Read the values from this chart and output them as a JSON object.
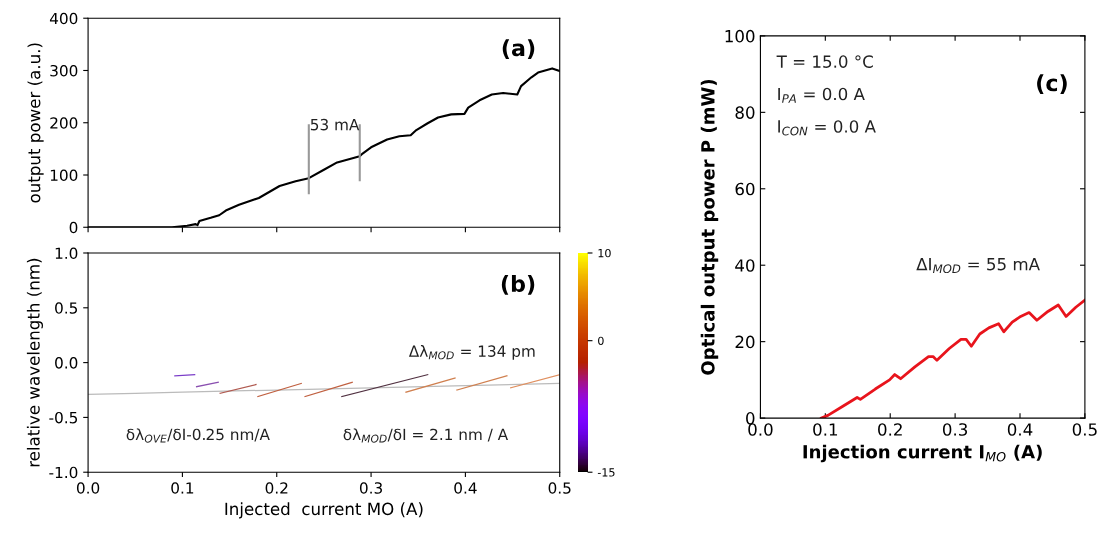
{
  "chart_data": [
    {
      "type": "line",
      "title": "(a)",
      "ylabel": "output power (a.u.)",
      "xlim": [
        0.0,
        0.5
      ],
      "xticks": [
        {
          "value": 0.0,
          "label": null
        },
        {
          "value": 0.1,
          "label": null
        },
        {
          "value": 0.2,
          "label": null
        },
        {
          "value": 0.3,
          "label": null
        },
        {
          "value": 0.4,
          "label": null
        },
        {
          "value": 0.5,
          "label": null
        }
      ],
      "ylim": [
        0,
        400
      ],
      "yticks": [
        0,
        100,
        200,
        300,
        400
      ],
      "tick_labels": "y",
      "grid": false,
      "legend": false,
      "annotations": [
        "53 mA"
      ],
      "series": [
        {
          "color": "#000000",
          "x": [
            0.0,
            0.089,
            0.105,
            0.114,
            0.116,
            0.118,
            0.13,
            0.139,
            0.146,
            0.16,
            0.181,
            0.203,
            0.22,
            0.234,
            0.25,
            0.264,
            0.288,
            0.291,
            0.3,
            0.317,
            0.33,
            0.342,
            0.348,
            0.36,
            0.371,
            0.385,
            0.399,
            0.403,
            0.415,
            0.428,
            0.44,
            0.455,
            0.459,
            0.47,
            0.477,
            0.492,
            0.5
          ],
          "values": [
            0,
            0,
            3,
            6,
            4,
            12,
            18,
            23,
            32,
            43,
            56,
            79,
            88,
            94,
            110,
            124,
            136,
            141,
            153,
            168,
            174,
            176,
            186,
            199,
            210,
            216,
            217,
            229,
            243,
            254,
            257,
            254,
            270,
            287,
            296,
            304,
            299
          ]
        },
        {
          "color": "#999999",
          "x": [
            0.234,
            0.234
          ],
          "values": [
            65,
            195
          ]
        },
        {
          "color": "#999999",
          "x": [
            0.288,
            0.288
          ],
          "values": [
            90,
            195
          ]
        }
      ]
    },
    {
      "type": "line",
      "title": "(b)",
      "xlabel": "Injected  current MO (A)",
      "ylabel": "relative wavelength (nm)",
      "xlim": [
        0.0,
        0.5
      ],
      "xticks": [
        {
          "value": 0,
          "label": "0.0"
        },
        0.1,
        0.2,
        0.3,
        0.4,
        0.5
      ],
      "ylim": [
        -1.0,
        1.0
      ],
      "yticks": [
        {
          "value": -1,
          "label": "-1.0"
        },
        -0.5,
        {
          "value": 0,
          "label": "0.0"
        },
        0.5,
        {
          "value": 1,
          "label": "1.0"
        }
      ],
      "grid": false,
      "legend": false,
      "clim": [
        -15,
        10
      ],
      "cticks": [
        -15,
        0,
        10
      ],
      "annotations": [
        "Δλ$_{MOD}$ = 134 pm",
        "δλ$_{OVE}$/δI-0.25 nm/A",
        "δλ$_{MOD}$/δI = 2.1 nm / A"
      ],
      "series": [
        {
          "color": "#bbbbbb",
          "x": [
            0.0,
            0.05,
            0.1,
            0.2,
            0.3,
            0.4,
            0.5
          ],
          "values": [
            -0.29,
            -0.28,
            -0.27,
            -0.25,
            -0.23,
            -0.21,
            -0.19
          ]
        },
        {
          "color": "#7a3cc8",
          "x": [
            0.092,
            0.113
          ],
          "values": [
            -0.12,
            -0.11
          ]
        },
        {
          "color": "#8a4fb0",
          "x": [
            0.115,
            0.138
          ],
          "values": [
            -0.22,
            -0.18
          ]
        },
        {
          "color": "#b05a50",
          "x": [
            0.14,
            0.178
          ],
          "values": [
            -0.28,
            -0.2
          ]
        },
        {
          "color": "#c06040",
          "x": [
            0.18,
            0.226
          ],
          "values": [
            -0.31,
            -0.19
          ]
        },
        {
          "color": "#c06040",
          "x": [
            0.23,
            0.28
          ],
          "values": [
            -0.31,
            -0.18
          ]
        },
        {
          "color": "#503040",
          "x": [
            0.269,
            0.36
          ],
          "values": [
            -0.31,
            -0.11
          ]
        },
        {
          "color": "#d08050",
          "x": [
            0.337,
            0.389
          ],
          "values": [
            -0.27,
            -0.14
          ]
        },
        {
          "color": "#d08050",
          "x": [
            0.391,
            0.444
          ],
          "values": [
            -0.25,
            -0.12
          ]
        },
        {
          "color": "#e09060",
          "x": [
            0.448,
            0.5
          ],
          "values": [
            -0.23,
            -0.11
          ]
        }
      ]
    },
    {
      "type": "line",
      "title": "(c)",
      "xlabel": "Injection current I$_{MO}$ (A)",
      "ylabel": "Optical output power P (mW)",
      "xlim": [
        0.0,
        0.5
      ],
      "xticks": [
        {
          "value": 0,
          "label": "0.0"
        },
        0.1,
        0.2,
        0.3,
        0.4,
        0.5
      ],
      "ylim": [
        0,
        100
      ],
      "yticks": [
        0,
        20,
        40,
        60,
        80,
        100
      ],
      "grid": false,
      "legend": false,
      "annotations": [
        "T = 15.0 °C",
        "I$_{PA}$ = 0.0 A",
        "I$_{CON}$ = 0.0 A",
        "ΔI$_{MOD}$ = 55 mA"
      ],
      "series": [
        {
          "color": "#e8141c",
          "x": [
            0.094,
            0.104,
            0.127,
            0.149,
            0.154,
            0.177,
            0.199,
            0.207,
            0.216,
            0.238,
            0.259,
            0.266,
            0.272,
            0.291,
            0.309,
            0.317,
            0.325,
            0.338,
            0.352,
            0.367,
            0.375,
            0.388,
            0.401,
            0.414,
            0.426,
            0.443,
            0.459,
            0.471,
            0.486,
            0.5
          ],
          "values": [
            0,
            0.7,
            3.1,
            5.4,
            4.9,
            7.6,
            10,
            11.4,
            10.3,
            13.4,
            16.1,
            16.1,
            15.1,
            18.2,
            20.6,
            20.6,
            18.8,
            22,
            23.6,
            24.7,
            22.6,
            25.1,
            26.6,
            27.6,
            25.6,
            27.9,
            29.6,
            26.6,
            29,
            30.9
          ]
        }
      ]
    }
  ]
}
